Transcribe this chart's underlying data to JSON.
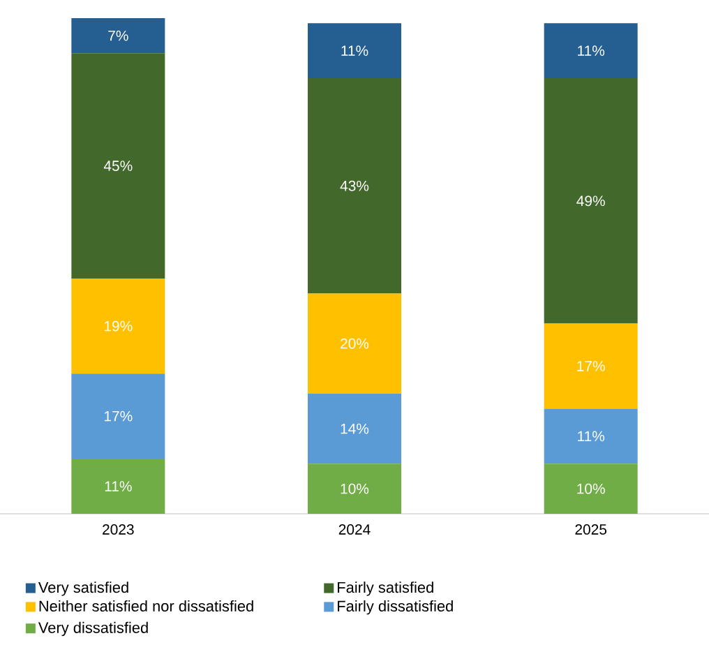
{
  "chart_data": {
    "type": "bar",
    "stacked": true,
    "categories": [
      "2023",
      "2024",
      "2025"
    ],
    "legend": "bottom",
    "series": [
      {
        "name": "Very dissatisfied",
        "color": "#70ad47",
        "values": [
          11,
          10,
          10
        ],
        "value_labels": [
          "11%",
          "10%",
          "10%"
        ]
      },
      {
        "name": "Fairly dissatisfied",
        "color": "#5b9bd5",
        "values": [
          17,
          14,
          11
        ],
        "value_labels": [
          "17%",
          "14%",
          "11%"
        ]
      },
      {
        "name": "Neither satisfied nor dissatisfied",
        "color": "#ffc000",
        "values": [
          19,
          20,
          17
        ],
        "value_labels": [
          "19%",
          "20%",
          "17%"
        ]
      },
      {
        "name": "Fairly satisfied",
        "color": "#43682b",
        "values": [
          45,
          43,
          49
        ],
        "value_labels": [
          "45%",
          "43%",
          "49%"
        ]
      },
      {
        "name": "Very satisfied",
        "color": "#255e91",
        "values": [
          7,
          11,
          11
        ],
        "value_labels": [
          "7%",
          "11%",
          "11%"
        ]
      }
    ]
  }
}
